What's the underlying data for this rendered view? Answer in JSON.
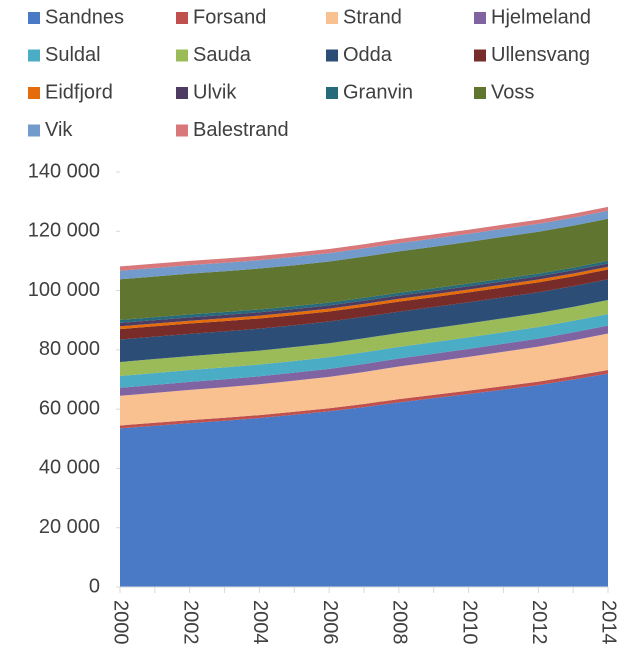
{
  "chart_data": {
    "type": "stacked_area",
    "x": [
      2000,
      2001,
      2002,
      2003,
      2004,
      2005,
      2006,
      2007,
      2008,
      2009,
      2010,
      2011,
      2012,
      2013,
      2014
    ],
    "xlim": [
      2000,
      2014
    ],
    "xticks": [
      2000,
      2002,
      2004,
      2006,
      2008,
      2010,
      2012,
      2014
    ],
    "ylim": [
      0,
      140000
    ],
    "yticks": [
      0,
      {
        "value": 20000,
        "label": "20 000"
      },
      {
        "value": 40000,
        "label": "40 000"
      },
      {
        "value": 60000,
        "label": "60 000"
      },
      {
        "value": 80000,
        "label": "80 000"
      },
      {
        "value": 100000,
        "label": "100 000"
      },
      {
        "value": 120000,
        "label": "120 000"
      },
      {
        "value": 140000,
        "label": "140 000"
      }
    ],
    "legend": "top",
    "series": [
      {
        "name": "Sandnes",
        "color": "#4a7ac6",
        "values": [
          53500,
          54400,
          55300,
          56100,
          57000,
          58100,
          59300,
          60700,
          62300,
          63700,
          65100,
          66600,
          68100,
          70000,
          72000
        ]
      },
      {
        "name": "Forsand",
        "color": "#c0504d",
        "values": [
          1000,
          1000,
          1000,
          1000,
          1000,
          1000,
          1000,
          1050,
          1100,
          1100,
          1150,
          1150,
          1200,
          1200,
          1200
        ]
      },
      {
        "name": "Strand",
        "color": "#f9c090",
        "values": [
          10000,
          10100,
          10200,
          10300,
          10400,
          10500,
          10600,
          10800,
          11000,
          11200,
          11400,
          11600,
          11800,
          12000,
          12300
        ]
      },
      {
        "name": "Hjelmeland",
        "color": "#8064a2",
        "values": [
          2700,
          2700,
          2700,
          2700,
          2700,
          2700,
          2700,
          2700,
          2700,
          2700,
          2700,
          2700,
          2700,
          2700,
          2700
        ]
      },
      {
        "name": "Suldal",
        "color": "#4bacc6",
        "values": [
          4000,
          4000,
          4000,
          4000,
          3950,
          3950,
          3950,
          3950,
          3900,
          3900,
          3900,
          3900,
          3900,
          3900,
          3900
        ]
      },
      {
        "name": "Sauda",
        "color": "#9bbb59",
        "values": [
          4700,
          4700,
          4700,
          4700,
          4700,
          4700,
          4700,
          4700,
          4700,
          4700,
          4700,
          4700,
          4700,
          4700,
          4700
        ]
      },
      {
        "name": "Odda",
        "color": "#2c4d75",
        "values": [
          7600,
          7550,
          7500,
          7450,
          7400,
          7350,
          7300,
          7250,
          7200,
          7150,
          7100,
          7100,
          7050,
          7000,
          7000
        ]
      },
      {
        "name": "Ullensvang",
        "color": "#772c2a",
        "values": [
          3500,
          3500,
          3480,
          3460,
          3440,
          3420,
          3400,
          3400,
          3380,
          3360,
          3350,
          3340,
          3320,
          3300,
          3300
        ]
      },
      {
        "name": "Eidfjord",
        "color": "#e46c0a",
        "values": [
          950,
          950,
          950,
          950,
          950,
          950,
          950,
          950,
          950,
          950,
          950,
          950,
          950,
          950,
          950
        ]
      },
      {
        "name": "Ulvik",
        "color": "#4d3b62",
        "values": [
          1150,
          1150,
          1140,
          1140,
          1130,
          1130,
          1120,
          1120,
          1110,
          1110,
          1100,
          1100,
          1100,
          1100,
          1100
        ]
      },
      {
        "name": "Granvin",
        "color": "#276a7c",
        "values": [
          1000,
          990,
          980,
          970,
          960,
          950,
          950,
          940,
          940,
          930,
          920,
          920,
          910,
          900,
          900
        ]
      },
      {
        "name": "Voss",
        "color": "#5f7530",
        "values": [
          13700,
          13700,
          13750,
          13750,
          13800,
          13800,
          13850,
          13900,
          13950,
          14000,
          14050,
          14100,
          14100,
          14150,
          14200
        ]
      },
      {
        "name": "Vik",
        "color": "#729aca",
        "values": [
          2900,
          2890,
          2880,
          2860,
          2850,
          2840,
          2820,
          2800,
          2790,
          2780,
          2760,
          2740,
          2730,
          2710,
          2700
        ]
      },
      {
        "name": "Balestrand",
        "color": "#d9787a",
        "values": [
          1450,
          1440,
          1430,
          1420,
          1410,
          1400,
          1390,
          1380,
          1370,
          1360,
          1350,
          1340,
          1330,
          1320,
          1300
        ]
      }
    ]
  }
}
